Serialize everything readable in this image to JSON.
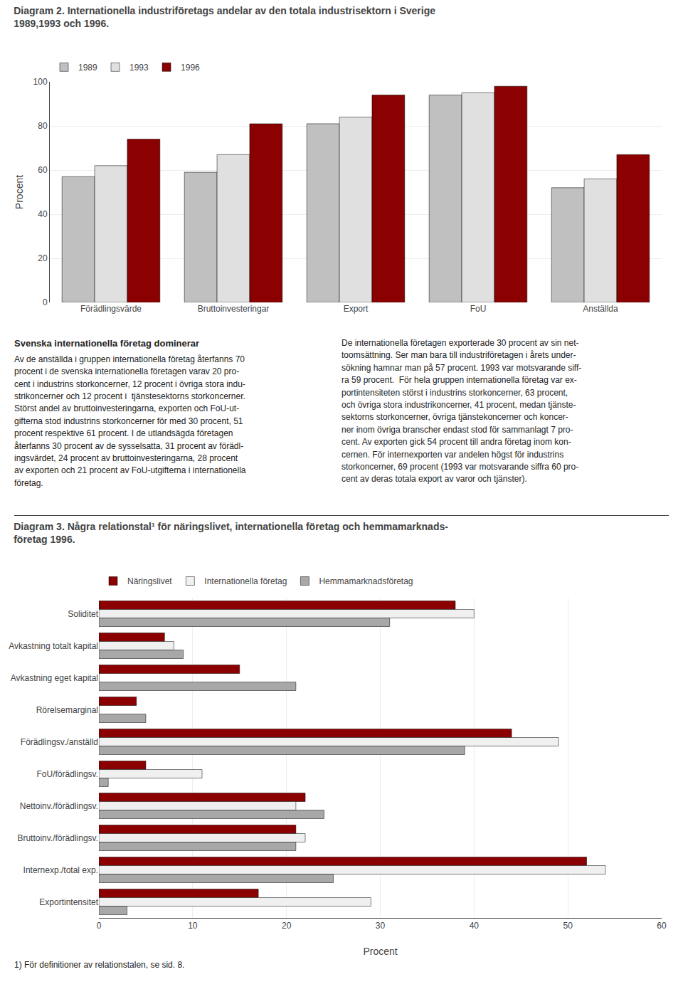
{
  "chart_data": [
    {
      "type": "bar",
      "title": "Diagram 2. Internationella industriföretags andelar av den totala industrisektorn i Sverige\n1989,1993 och 1996.",
      "ylabel": "Procent",
      "categories": [
        "Förädlingsvärde",
        "Bruttoinvesteringar",
        "Export",
        "FoU",
        "Anställda"
      ],
      "series": [
        {
          "name": "1989",
          "color": "#c0c0c0",
          "values": [
            57,
            59,
            81,
            94,
            52
          ]
        },
        {
          "name": "1993",
          "color": "#e0e0e0",
          "values": [
            62,
            67,
            84,
            95,
            56
          ]
        },
        {
          "name": "1996",
          "color": "#8b0000",
          "values": [
            74,
            81,
            94,
            98,
            67
          ]
        }
      ],
      "ylim": [
        0,
        100
      ],
      "yticks": [
        0,
        20,
        40,
        60,
        80,
        100
      ],
      "grid": true,
      "annotations": [
        "Svenska internationella företag dominerar",
        "Av de anställda i gruppen internationella företag återfanns 70\nprocent i de svenska internationella företagen varav 20 pro-\ncent i industrins storkoncerner, 12 procent i övriga stora indu-\nstrikoncerner och 12 procent i  tjänstesektorns storkoncerner.\nStörst andel av bruttoinvesteringarna, exporten och FoU-ut-\ngifterna stod industrins storkoncerner för med 30 procent, 51\nprocent respektive 61 procent. I de utlandsägda företagen\nåterfanns 30 procent av de sysselsatta, 31 procent av förädl-\ningsvärdet, 24 procent av bruttoinvesteringarna, 28 procent\nav exporten och 21 procent av FoU-utgifterna i internationella\nföretag.",
        "De internationella företagen exporterade 30 procent av sin net-\ntoomsättning. Ser man bara till industriföretagen i årets under-\nsökning hamnar man på 57 procent. 1993 var motsvarande siff-\nra 59 procent.  För hela gruppen internationella företag var ex-\nportintensiteten störst i industrins storkoncerner, 63 procent,\noch övriga stora industrikoncerner, 41 procent, medan tjänste-\nsektorns storkoncerner, övriga tjänstekoncerner och koncer-\nner inom övriga branscher endast stod för sammanlagt 7 pro-\ncent. Av exporten gick 54 procent till andra företag inom kon-\ncernen. För internexporten var andelen högst för industrins\nstorkoncerner, 69 procent (1993 var motsvarande siffra 60 pro-\ncent av deras totala export av varor och tjänster)."
      ]
    },
    {
      "type": "bar",
      "orientation": "horizontal",
      "title": "Diagram 3. Några relationstal¹ för näringslivet, internationella företag och hemmamarknads-\nföretag 1996.",
      "xlabel": "Procent",
      "categories": [
        "Soliditet",
        "Avkastning totalt kapital",
        "Avkastning eget kapital",
        "Rörelsemarginal",
        "Förädlingsv./anställd",
        "FoU/förädlingsv.",
        "Nettoinv./förädlingsv.",
        "Bruttoinv./förädlingsv.",
        "Internexp./total exp.",
        "Exportintensitet"
      ],
      "series": [
        {
          "name": "Näringslivet",
          "color": "#8b0000",
          "values": [
            38,
            7,
            15,
            4,
            44,
            5,
            22,
            21,
            52,
            17
          ]
        },
        {
          "name": "Internationella företag",
          "color": "#f0f0f0",
          "values": [
            40,
            8,
            0,
            0,
            49,
            11,
            21,
            22,
            54,
            29
          ]
        },
        {
          "name": "Hemmamarknadsföretag",
          "color": "#a8a8a8",
          "values": [
            31,
            9,
            21,
            5,
            39,
            1,
            24,
            21,
            25,
            3
          ]
        }
      ],
      "xlim": [
        0,
        60
      ],
      "xticks": [
        0,
        10,
        20,
        30,
        40,
        50,
        60
      ],
      "grid": true,
      "annotations": [
        "1) För definitioner av relationstalen, se sid. 8."
      ]
    }
  ]
}
